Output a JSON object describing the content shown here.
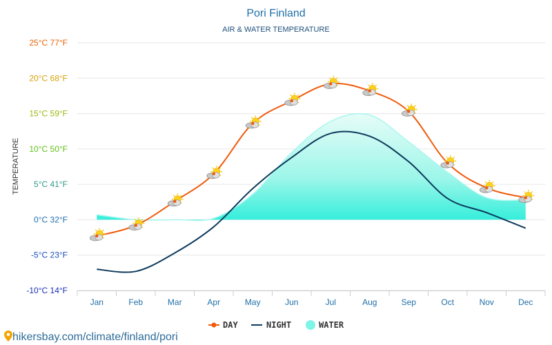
{
  "chart_data": {
    "type": "line",
    "title": "Pori Finland",
    "subtitle": "AIR & WATER TEMPERATURE",
    "ylabel": "TEMPERATURE",
    "categories": [
      "Jan",
      "Feb",
      "Mar",
      "Apr",
      "May",
      "Jun",
      "Jul",
      "Aug",
      "Sep",
      "Oct",
      "Nov",
      "Dec"
    ],
    "ylim": [
      -10,
      25
    ],
    "y_ticks": [
      {
        "value": 25,
        "label": "25°C 77°F",
        "color": "#e8640c"
      },
      {
        "value": 20,
        "label": "20°C 68°F",
        "color": "#d4a20a"
      },
      {
        "value": 15,
        "label": "15°C 59°F",
        "color": "#9ab80f"
      },
      {
        "value": 10,
        "label": "10°C 50°F",
        "color": "#5fbf14"
      },
      {
        "value": 5,
        "label": "5°C 41°F",
        "color": "#2f9a8c"
      },
      {
        "value": 0,
        "label": "0°C 32°F",
        "color": "#1f6fb0"
      },
      {
        "value": -5,
        "label": "-5°C 23°F",
        "color": "#1a4fc0"
      },
      {
        "value": -10,
        "label": "-10°C 14°F",
        "color": "#1a2fb8"
      }
    ],
    "grid": true,
    "legend_position": "bottom",
    "series": [
      {
        "name": "DAY",
        "kind": "line-markers",
        "color": "#f05a0a",
        "values": [
          -2.3,
          -0.8,
          2.6,
          6.5,
          13.6,
          16.8,
          19.2,
          18.2,
          15.3,
          8.0,
          4.5,
          3.1
        ]
      },
      {
        "name": "NIGHT",
        "kind": "line",
        "color": "#0d3a5c",
        "values": [
          -7.0,
          -7.3,
          -4.7,
          -1.0,
          4.4,
          8.8,
          12.2,
          11.8,
          8.2,
          3.0,
          1.0,
          -1.2
        ]
      },
      {
        "name": "WATER",
        "kind": "area",
        "color": "#7ff5e8",
        "values": [
          0.7,
          0.0,
          0.0,
          0.2,
          3.6,
          9.5,
          13.9,
          14.8,
          11.0,
          6.7,
          3.1,
          2.8
        ]
      }
    ],
    "weather_icons": "partly-cloudy-icon"
  },
  "footer": {
    "text": "hikersbay.com/climate/finland/pori",
    "icon": "location-pin-icon"
  }
}
